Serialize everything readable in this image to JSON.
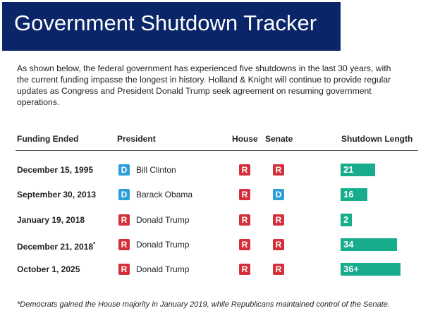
{
  "header": {
    "title": "Government Shutdown Tracker"
  },
  "intro": "As shown below, the federal government has experienced five shutdowns in the last 30 years, with the current funding impasse the longest in history. Holland & Knight will continue to provide regular updates as Congress and President Donald Trump seek agreement on resuming government operations.",
  "table": {
    "columns": [
      "Funding Ended",
      "President",
      "House",
      "Senate",
      "Shutdown Length"
    ],
    "party_colors": {
      "R": "#d3303c",
      "D": "#2b9fd9"
    },
    "bar_color": "#17ad8c",
    "rows": [
      {
        "date": "December 15, 1995",
        "president_party": "D",
        "president": "Bill Clinton",
        "house": "R",
        "senate": "R",
        "length": 21
      },
      {
        "date": "September 30, 2013",
        "president_party": "D",
        "president": "Barack Obama",
        "house": "R",
        "senate": "D",
        "length": 16
      },
      {
        "date": "January 19, 2018",
        "president_party": "R",
        "president": "Donald Trump",
        "house": "R",
        "senate": "R",
        "length": 2
      },
      {
        "date": "December 21, 2018",
        "date_note": "*",
        "president_party": "R",
        "president": "Donald Trump",
        "house": "R",
        "senate": "R",
        "length": 34
      },
      {
        "date": "October 1, 2025",
        "president_party": "R",
        "president": "Donald Trump",
        "house": "R",
        "senate": "R",
        "length": 36,
        "length_label": "36+"
      }
    ]
  },
  "footnote": "*Democrats gained the House majority in January 2019, while Republicans maintained control of the Senate."
}
